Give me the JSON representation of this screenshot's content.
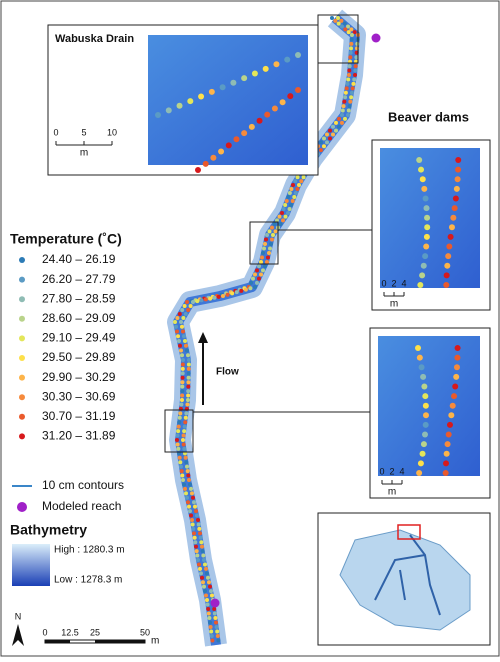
{
  "legend": {
    "title": "Temperature (˚C)",
    "classes": [
      {
        "label": "24.40 – 26.19",
        "color": "#2c7bb6"
      },
      {
        "label": "26.20 – 27.79",
        "color": "#5b9bc4"
      },
      {
        "label": "27.80 – 28.59",
        "color": "#8fbcb4"
      },
      {
        "label": "28.60 – 29.09",
        "color": "#b9d38b"
      },
      {
        "label": "29.10 – 29.49",
        "color": "#e3e65a"
      },
      {
        "label": "29.50 – 29.89",
        "color": "#fde04a"
      },
      {
        "label": "29.90 – 30.29",
        "color": "#fdb44a"
      },
      {
        "label": "30.30 – 30.69",
        "color": "#f68a3c"
      },
      {
        "label": "30.70 – 31.19",
        "color": "#ea5a2c"
      },
      {
        "label": "31.20 – 31.89",
        "color": "#d7191c"
      }
    ],
    "contours": "10 cm  contours",
    "modeled_reach": "Modeled reach"
  },
  "bathymetry": {
    "title": "Bathymetry",
    "high": "High : 1280.3 m",
    "low": "Low : 1278.3 m"
  },
  "insets": [
    {
      "title": "Wabuska Drain",
      "scale": [
        "0",
        "5",
        "10"
      ],
      "unit": "m"
    },
    {
      "title": "Beaver dams",
      "scale": [
        "0",
        "2",
        "4"
      ],
      "unit": "m"
    },
    {
      "scale": [
        "0",
        "2",
        "4"
      ],
      "unit": "m"
    }
  ],
  "flow": "Flow",
  "north": "N",
  "scale_bar": {
    "ticks": [
      "0",
      "12.5",
      "25",
      "50"
    ],
    "unit": "m"
  }
}
